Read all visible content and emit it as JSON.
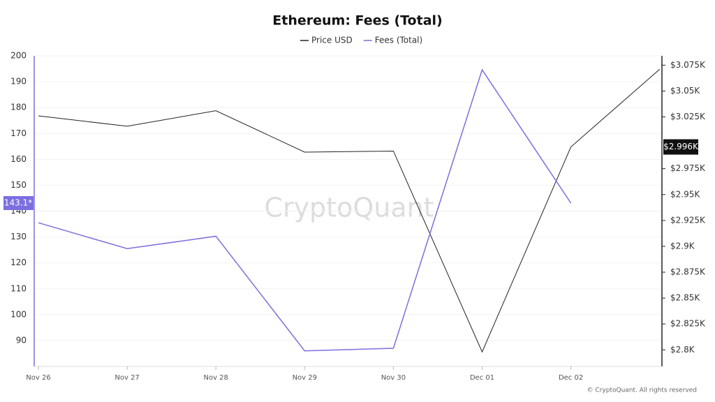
{
  "chart_data": {
    "type": "line",
    "title": "Ethereum: Fees (Total)",
    "watermark": "CryptoQuant",
    "credit": "© CryptoQuant. All rights reserved",
    "categories": [
      "Nov 26",
      "Nov 27",
      "Nov 28",
      "Nov 29",
      "Nov 30",
      "Dec 01",
      "Dec 02",
      null
    ],
    "series": [
      {
        "name": "Price USD",
        "color": "#222222",
        "axis": "y2",
        "values": [
          3026,
          3016,
          3031,
          2991,
          2992,
          2798,
          2996,
          3071
        ],
        "value_labels": [
          null,
          null,
          null,
          null,
          null,
          null,
          "$2.996K",
          null
        ]
      },
      {
        "name": "Fees (Total)",
        "color": "#7b6fe0",
        "values": [
          135.5,
          125.5,
          130.3,
          86,
          87,
          194.6,
          143.1,
          null
        ],
        "value_labels": [
          null,
          null,
          null,
          null,
          null,
          null,
          "143.1*",
          null
        ]
      }
    ],
    "ylim": [
      80,
      200
    ],
    "yticks": [
      90,
      100,
      110,
      120,
      130,
      140,
      150,
      160,
      170,
      180,
      190,
      200
    ],
    "y2lim": [
      2784,
      3084
    ],
    "y2ticks": [
      {
        "value": 2800,
        "label": "$2.8K"
      },
      {
        "value": 2825,
        "label": "$2.825K"
      },
      {
        "value": 2850,
        "label": "$2.85K"
      },
      {
        "value": 2875,
        "label": "$2.875K"
      },
      {
        "value": 2900,
        "label": "$2.9K"
      },
      {
        "value": 2925,
        "label": "$2.925K"
      },
      {
        "value": 2950,
        "label": "$2.95K"
      },
      {
        "value": 2975,
        "label": "$2.975K"
      },
      {
        "value": 3025,
        "label": "$3.025K"
      },
      {
        "value": 3050,
        "label": "$3.05K"
      },
      {
        "value": 3075,
        "label": "$3.075K"
      }
    ],
    "grid": true,
    "legend": "top"
  }
}
